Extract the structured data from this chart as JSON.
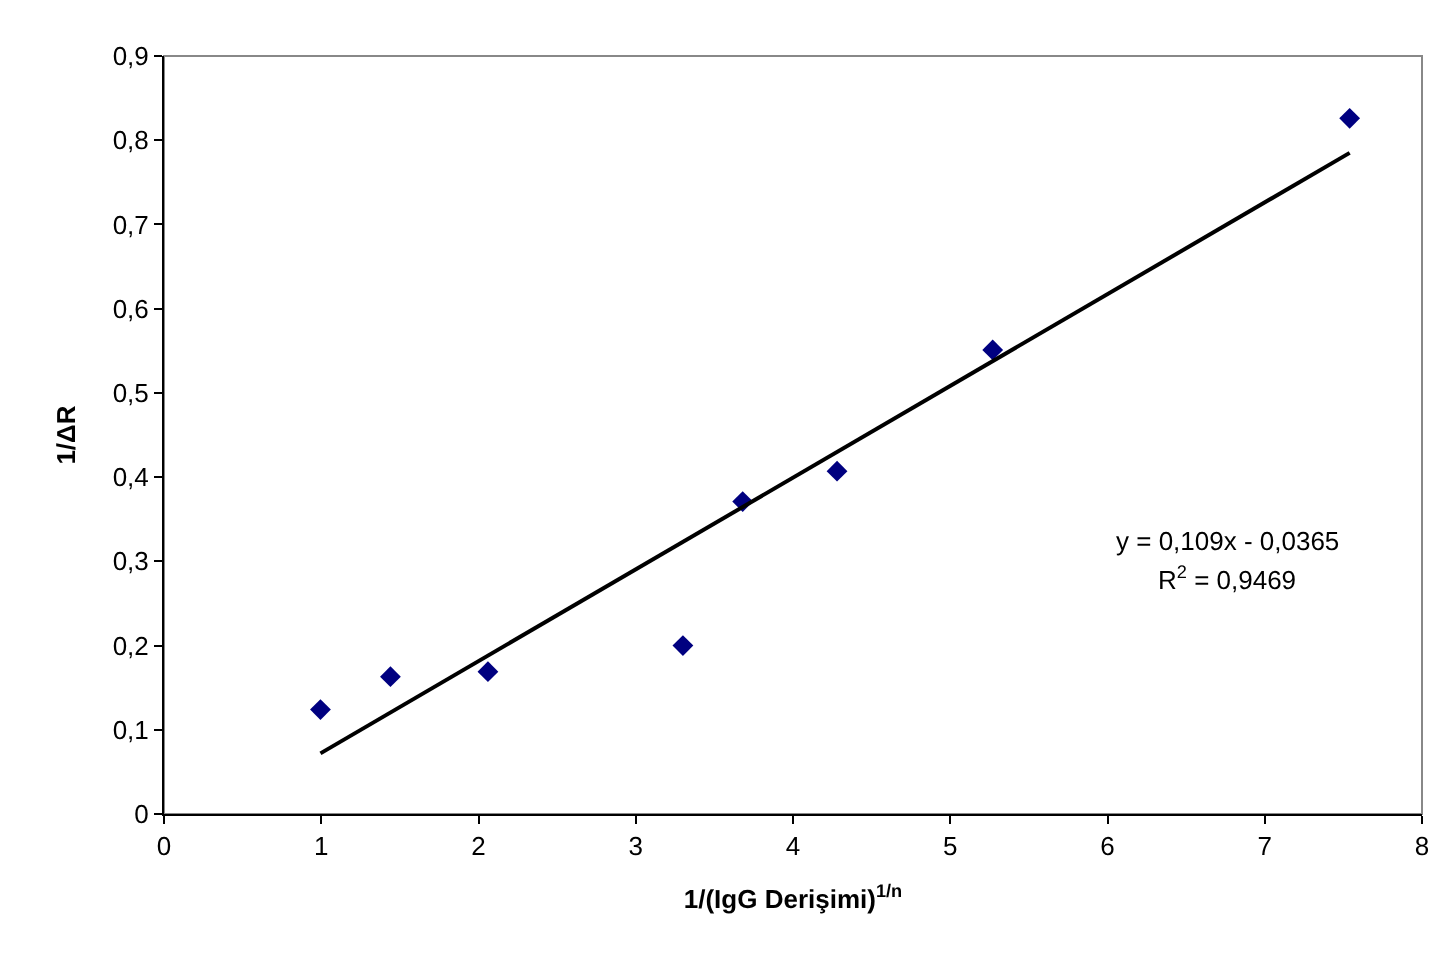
{
  "chart_data": {
    "type": "scatter",
    "xlabel": "1/(IgG Derişimi)$^{1/n}$",
    "ylabel": "1/ΔR",
    "x": [
      0.995,
      1.44,
      2.06,
      3.3,
      3.68,
      4.28,
      5.27,
      7.54
    ],
    "series": [
      {
        "color": "#000080",
        "marker": "diamond",
        "values": [
          0.124,
          0.163,
          0.169,
          0.2,
          0.371,
          0.407,
          0.551,
          0.826
        ]
      },
      {
        "type": "line",
        "color": "#000000",
        "marker": "none",
        "line_style": "solid",
        "x": [
          0.995,
          7.54
        ],
        "values": [
          0.072,
          0.785
        ]
      }
    ],
    "xlim": [
      0,
      8
    ],
    "xticks": [
      0,
      1,
      2,
      3,
      4,
      5,
      6,
      7,
      8
    ],
    "ylim": [
      0,
      0.9
    ],
    "yticks": [
      0,
      {
        "value": 0.1,
        "label": "0,1"
      },
      {
        "value": 0.2,
        "label": "0,2"
      },
      {
        "value": 0.3,
        "label": "0,3"
      },
      {
        "value": 0.4,
        "label": "0,4"
      },
      {
        "value": 0.5,
        "label": "0,5"
      },
      {
        "value": 0.6,
        "label": "0,6"
      },
      {
        "value": 0.7,
        "label": "0,7"
      },
      {
        "value": 0.8,
        "label": "0,8"
      },
      {
        "value": 0.9,
        "label": "0,9"
      }
    ],
    "annotations": [
      "y = 0,109x - 0,0365",
      "R$^{2}$ = 0,9469"
    ]
  }
}
